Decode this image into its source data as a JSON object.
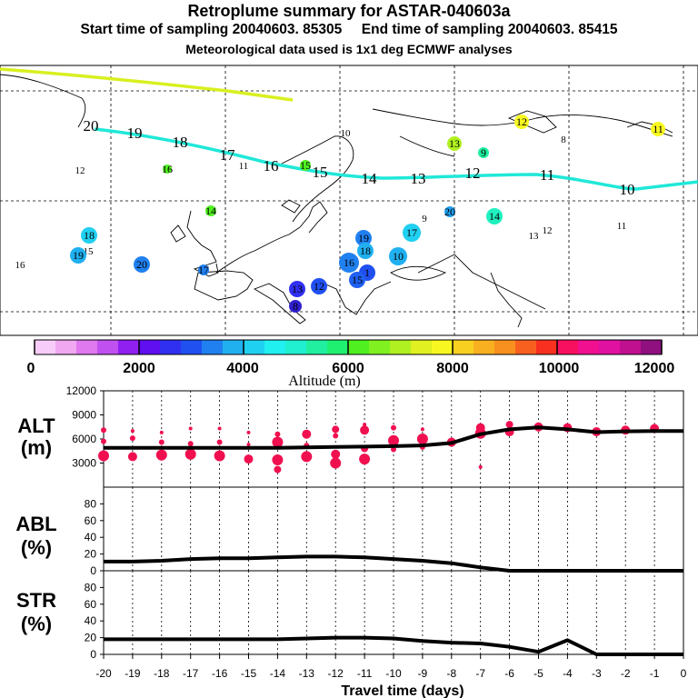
{
  "header": {
    "title": "Retroplume summary for ASTAR-040603a",
    "subtitle": "Start time of sampling 20040603. 85305     End time of sampling 20040603. 85415",
    "met_line": "Meteorological data used is 1x1 deg ECMWF analyses"
  },
  "colorbar": {
    "label": "Altitude (m)",
    "ticks": [
      "0",
      "2000",
      "4000",
      "6000",
      "8000",
      "10000",
      "12000"
    ],
    "colors": [
      "#f8ccf8",
      "#f0a8f0",
      "#e078f0",
      "#c050f0",
      "#9020f0",
      "#6010f0",
      "#3030f0",
      "#2050f0",
      "#2080f0",
      "#20b0f0",
      "#20d0f0",
      "#20f0f0",
      "#20f0d0",
      "#20f0a0",
      "#20f070",
      "#50f020",
      "#80f020",
      "#b0f020",
      "#e0f020",
      "#f8f820",
      "#f8d020",
      "#f8b020",
      "#f89020",
      "#f86020",
      "#f83020",
      "#f81060",
      "#f01090",
      "#e010a0",
      "#c01090",
      "#901080"
    ]
  },
  "map": {
    "plume_track_labels": [
      "20",
      "19",
      "18",
      "17",
      "16",
      "15",
      "14",
      "13",
      "12",
      "11",
      "10"
    ],
    "clusters": [
      {
        "label": "12",
        "color": "#e0f020"
      },
      {
        "label": "11",
        "color": "#e0f020"
      },
      {
        "label": "13",
        "color": "#b0f020"
      },
      {
        "label": "9",
        "color": "#20f0a0"
      },
      {
        "label": "8",
        "color": "#20f0a0"
      },
      {
        "label": "10",
        "color": "#f8f820"
      },
      {
        "label": "12",
        "color": "#f8f820"
      },
      {
        "label": "16",
        "color": "#50f020"
      },
      {
        "label": "11",
        "color": "#f8f820"
      },
      {
        "label": "15",
        "color": "#50f020"
      },
      {
        "label": "14",
        "color": "#50f020"
      },
      {
        "label": "9",
        "color": "#20f070"
      },
      {
        "label": "20",
        "color": "#20a0f0"
      },
      {
        "label": "14",
        "color": "#20f0c0"
      },
      {
        "label": "13",
        "color": "#20f0d0"
      },
      {
        "label": "12",
        "color": "#20f0d0"
      },
      {
        "label": "11",
        "color": "#20f0d0"
      },
      {
        "label": "18",
        "color": "#20d0f0"
      },
      {
        "label": "15",
        "color": "#20f0d0"
      },
      {
        "label": "19",
        "color": "#20b0f0"
      },
      {
        "label": "16",
        "color": "#20f0a0"
      },
      {
        "label": "20",
        "color": "#2080f0"
      },
      {
        "label": "17",
        "color": "#2080f0"
      },
      {
        "label": "19",
        "color": "#2080f0"
      },
      {
        "label": "18",
        "color": "#20b0f0"
      },
      {
        "label": "17",
        "color": "#20d0f0"
      },
      {
        "label": "10",
        "color": "#20b0f0"
      },
      {
        "label": "16",
        "color": "#2080f0"
      },
      {
        "label": "1",
        "color": "#2050f0"
      },
      {
        "label": "15",
        "color": "#2060f0"
      },
      {
        "label": "13",
        "color": "#3030f0"
      },
      {
        "label": "12",
        "color": "#2050f0"
      },
      {
        "label": "8",
        "color": "#3020d0"
      }
    ]
  },
  "chart_data": [
    {
      "type": "line",
      "panel": "ALT",
      "ylabel_lines": [
        "ALT",
        "(m)"
      ],
      "ylim": [
        0,
        12000
      ],
      "yticks": [
        3000,
        6000,
        9000,
        12000
      ],
      "ytick_labels": [
        "3000",
        "6000",
        "9000",
        "12000"
      ],
      "xlim": [
        -20,
        0
      ],
      "series": [
        {
          "name": "mean altitude",
          "x": [
            -20,
            -19,
            -18,
            -17,
            -16,
            -15,
            -14,
            -13,
            -12,
            -11,
            -10,
            -9,
            -8,
            -7,
            -6,
            -5,
            -4,
            -3,
            -2,
            -1,
            0
          ],
          "values": [
            4900,
            4900,
            4900,
            4900,
            4900,
            4900,
            4900,
            4950,
            5000,
            5050,
            5100,
            5200,
            5500,
            6600,
            7200,
            7450,
            7200,
            6850,
            6950,
            7000,
            7000
          ]
        }
      ],
      "scatter": {
        "name": "cluster altitudes",
        "color": "#f01050",
        "points": [
          [
            -20,
            3900,
            6
          ],
          [
            -20,
            7100,
            3
          ],
          [
            -20,
            5700,
            3
          ],
          [
            -19,
            3800,
            5
          ],
          [
            -19,
            6100,
            3
          ],
          [
            -19,
            7000,
            2
          ],
          [
            -18,
            4000,
            6
          ],
          [
            -18,
            5600,
            3
          ],
          [
            -18,
            6800,
            2
          ],
          [
            -17,
            4100,
            6
          ],
          [
            -17,
            5400,
            3
          ],
          [
            -17,
            7300,
            2
          ],
          [
            -16,
            3900,
            6
          ],
          [
            -16,
            5600,
            3
          ],
          [
            -16,
            7300,
            2
          ],
          [
            -15,
            5300,
            2
          ],
          [
            -15,
            6800,
            2
          ],
          [
            -15,
            3500,
            5
          ],
          [
            -14,
            2200,
            4
          ],
          [
            -14,
            3400,
            6
          ],
          [
            -14,
            5600,
            6
          ],
          [
            -14,
            6600,
            3
          ],
          [
            -13,
            3800,
            6
          ],
          [
            -13,
            6600,
            5
          ],
          [
            -13,
            5200,
            3
          ],
          [
            -12,
            3000,
            6
          ],
          [
            -12,
            4100,
            5
          ],
          [
            -12,
            6400,
            3
          ],
          [
            -12,
            7200,
            4
          ],
          [
            -11,
            3500,
            6
          ],
          [
            -11,
            4800,
            4
          ],
          [
            -11,
            7100,
            5
          ],
          [
            -11,
            7800,
            2
          ],
          [
            -10,
            4700,
            3
          ],
          [
            -10,
            5800,
            6
          ],
          [
            -10,
            7400,
            3
          ],
          [
            -9,
            5000,
            3
          ],
          [
            -9,
            6000,
            6
          ],
          [
            -9,
            7200,
            2
          ],
          [
            -8,
            5600,
            5
          ],
          [
            -7,
            2500,
            2
          ],
          [
            -7,
            6700,
            6
          ],
          [
            -7,
            7400,
            5
          ],
          [
            -6,
            6900,
            5
          ],
          [
            -6,
            7800,
            4
          ],
          [
            -5,
            7500,
            5
          ],
          [
            -4,
            7400,
            5
          ],
          [
            -3,
            6900,
            5
          ],
          [
            -2,
            7100,
            5
          ],
          [
            -1,
            7300,
            5
          ]
        ]
      }
    },
    {
      "type": "line",
      "panel": "ABL",
      "ylabel_lines": [
        "ABL",
        "(%)"
      ],
      "ylim": [
        0,
        100
      ],
      "yticks": [
        0,
        20,
        40,
        60,
        80
      ],
      "ytick_labels": [
        "0",
        "20",
        "40",
        "60",
        "80"
      ],
      "xlim": [
        -20,
        0
      ],
      "series": [
        {
          "name": "fraction in boundary layer",
          "x": [
            -20,
            -19,
            -18,
            -17,
            -16,
            -15,
            -14,
            -13,
            -12,
            -11,
            -10,
            -9,
            -8,
            -7,
            -6,
            -5,
            -4,
            -3,
            -2,
            -1,
            0
          ],
          "values": [
            11,
            11,
            12,
            14,
            15,
            15,
            16,
            17,
            17,
            16,
            14,
            12,
            9,
            4,
            0,
            0,
            0,
            0,
            0,
            0,
            0
          ]
        }
      ]
    },
    {
      "type": "line",
      "panel": "STR",
      "ylabel_lines": [
        "STR",
        "(%)"
      ],
      "ylim": [
        0,
        100
      ],
      "yticks": [
        0,
        20,
        40,
        60,
        80
      ],
      "ytick_labels": [
        "0",
        "20",
        "40",
        "60",
        "80"
      ],
      "xlim": [
        -20,
        0
      ],
      "xticks": [
        -20,
        -19,
        -18,
        -17,
        -16,
        -15,
        -14,
        -13,
        -12,
        -11,
        -10,
        -9,
        -8,
        -7,
        -6,
        -5,
        -4,
        -3,
        -2,
        -1,
        0
      ],
      "xtick_labels": [
        "-20",
        "-19",
        "-18",
        "-17",
        "-16",
        "-15",
        "-14",
        "-13",
        "-12",
        "-11",
        "-10",
        "-9",
        "-8",
        "-7",
        "-6",
        "-5",
        "-4",
        "-3",
        "-2",
        "-1",
        "0"
      ],
      "xlabel": "Travel time (days)",
      "series": [
        {
          "name": "stratospheric fraction",
          "x": [
            -20,
            -19,
            -18,
            -17,
            -16,
            -15,
            -14,
            -13,
            -12,
            -11,
            -10,
            -9,
            -8,
            -7,
            -6,
            -5,
            -4,
            -3,
            -2,
            -1,
            0
          ],
          "values": [
            18,
            18,
            18,
            18,
            18,
            18,
            18,
            19,
            20,
            20,
            19,
            16,
            14,
            13,
            9,
            3,
            17,
            0,
            0,
            0,
            0
          ]
        }
      ]
    }
  ]
}
